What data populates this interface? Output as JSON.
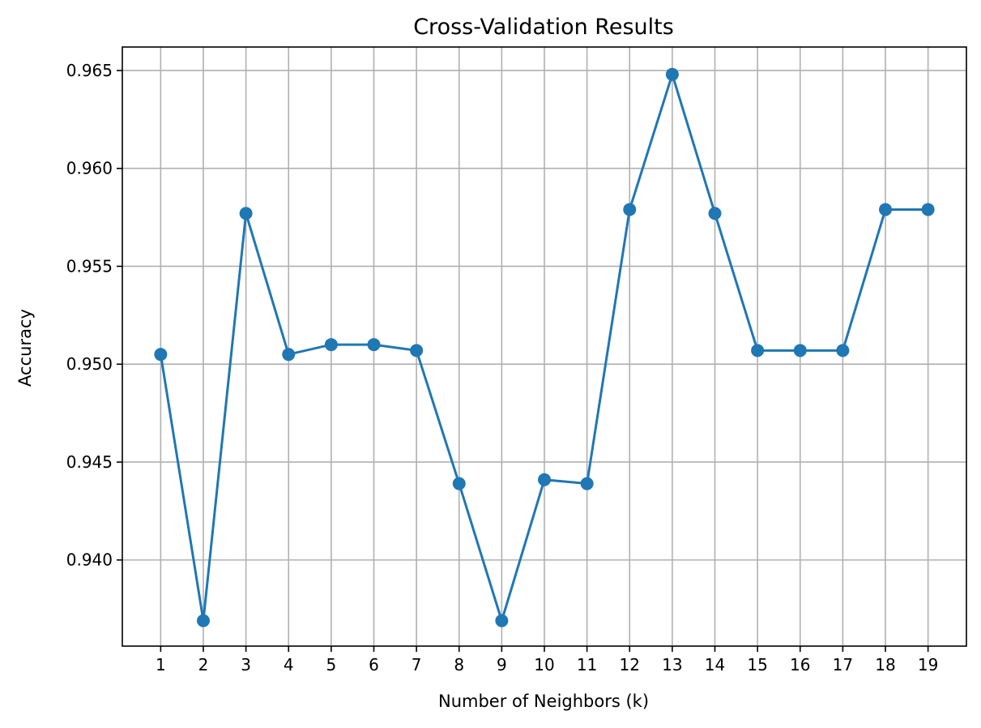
{
  "chart_data": {
    "type": "line",
    "title": "Cross-Validation Results",
    "xlabel": "Number of Neighbors (k)",
    "ylabel": "Accuracy",
    "x": [
      1,
      2,
      3,
      4,
      5,
      6,
      7,
      8,
      9,
      10,
      11,
      12,
      13,
      14,
      15,
      16,
      17,
      18,
      19
    ],
    "series": [
      {
        "values": [
          0.9505,
          0.9369,
          0.9577,
          0.9505,
          0.951,
          0.951,
          0.9507,
          0.9439,
          0.9369,
          0.9441,
          0.9439,
          0.9579,
          0.9648,
          0.9577,
          0.9507,
          0.9507,
          0.9507,
          0.9579,
          0.9579
        ],
        "color": "#1f77b4",
        "marker": "circle"
      }
    ],
    "xlim": [
      0.1,
      19.9
    ],
    "ylim": [
      0.9356,
      0.9662
    ],
    "xticks": [
      "1",
      "2",
      "3",
      "4",
      "5",
      "6",
      "7",
      "8",
      "9",
      "10",
      "11",
      "12",
      "13",
      "14",
      "15",
      "16",
      "17",
      "18",
      "19"
    ],
    "yticks": [
      0.94,
      0.945,
      0.95,
      0.955,
      0.96,
      0.965
    ],
    "ytick_labels": [
      "0.940",
      "0.945",
      "0.950",
      "0.955",
      "0.960",
      "0.965"
    ],
    "grid": true,
    "grid_color": "#b0b0b0"
  }
}
